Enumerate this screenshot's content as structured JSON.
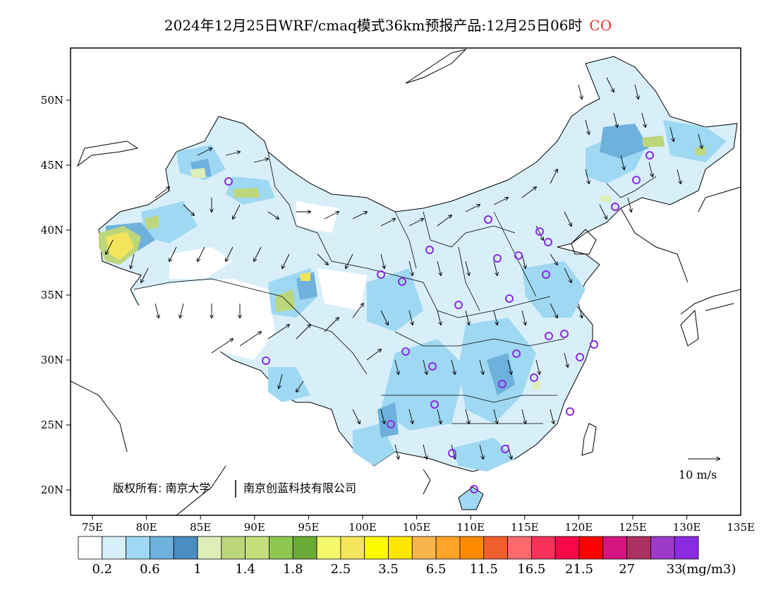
{
  "title": "2024年12月25日WRF/cmaq模式36km预报产品:12月25日06时",
  "species": "CO",
  "copyright": "版权所有: 南京大学",
  "copyright2": "南京创蓝科技有限公司",
  "wind_scale_label": "10 m/s",
  "lon_labels": [
    "75E",
    "80E",
    "85E",
    "90E",
    "95E",
    "100E",
    "105E",
    "110E",
    "115E",
    "120E",
    "125E",
    "130E",
    "135E"
  ],
  "lat_labels": [
    "20N",
    "25N",
    "30N",
    "35N",
    "40N",
    "45N",
    "50N"
  ],
  "legend": {
    "colors": [
      "#ffffff",
      "#d6effa",
      "#9fd8f2",
      "#6db1dc",
      "#4a8dc3",
      "#dfeeb8",
      "#bcd67b",
      "#c4e07c",
      "#8ec853",
      "#6aac35",
      "#f6f86c",
      "#f3e45c",
      "#fffb00",
      "#ffe600",
      "#f9b44c",
      "#fda429",
      "#ff8a00",
      "#f05e2b",
      "#fd6a6e",
      "#f8325a",
      "#f80848",
      "#ff0000",
      "#d5157f",
      "#aa3161",
      "#9c3bc9",
      "#8a2be2"
    ],
    "tick_labels": [
      "0.2",
      "0.6",
      "1",
      "1.4",
      "1.8",
      "2.5",
      "3.5",
      "6.5",
      "11.5",
      "16.5",
      "21.5",
      "27",
      "33"
    ],
    "unit": "(mg/m3)"
  },
  "colors": {
    "station_marker": "#8a2be2",
    "title_species": "#e8302a"
  }
}
